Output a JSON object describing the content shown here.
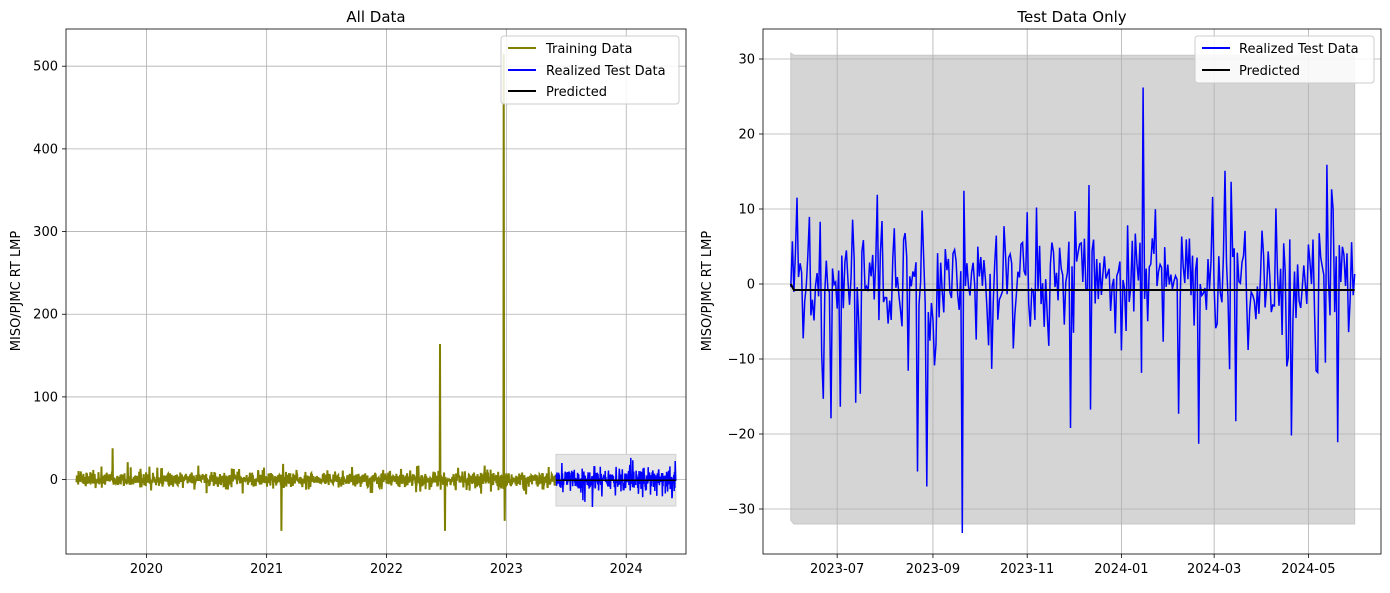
{
  "colors": {
    "training": "#808000",
    "test": "#0000ff",
    "predicted": "#000000",
    "band_left": "#e6e6e6",
    "band_right": "#d5d5d5"
  },
  "chart_data": [
    {
      "type": "line",
      "title": "All Data",
      "ylabel": "MISO/PJMC RT LMP",
      "xlim": [
        "2019-05-01",
        "2024-07-01"
      ],
      "ylim": [
        -90,
        545
      ],
      "x_ticks": [
        "2020",
        "2021",
        "2022",
        "2023",
        "2024"
      ],
      "y_ticks": [
        0,
        100,
        200,
        300,
        400,
        500
      ],
      "grid": true,
      "legend_position": "top-right",
      "legend": [
        "Training Data",
        "Realized Test Data",
        "Predicted"
      ],
      "series": [
        {
          "name": "Training Data",
          "approx_range": [
            "2019-06-01",
            "2023-05-31"
          ],
          "notable_points": [
            {
              "x": "2019-09-20",
              "y": 38
            },
            {
              "x": "2019-11-05",
              "y": 21
            },
            {
              "x": "2021-02-15",
              "y": -62
            },
            {
              "x": "2021-02-20",
              "y": 19
            },
            {
              "x": "2022-06-13",
              "y": 164
            },
            {
              "x": "2022-06-28",
              "y": -62
            },
            {
              "x": "2022-12-24",
              "y": 515
            },
            {
              "x": "2022-12-27",
              "y": -50
            }
          ]
        },
        {
          "name": "Realized Test Data",
          "approx_range": [
            "2023-06-01",
            "2024-05-31"
          ]
        },
        {
          "name": "Predicted",
          "approx_range": [
            "2023-06-01",
            "2024-05-31"
          ],
          "approx_value": -0.8,
          "interval": [
            -32,
            30.5
          ]
        }
      ]
    },
    {
      "type": "line",
      "title": "Test Data Only",
      "ylabel": "MISO/PJMC RT LMP",
      "xlim": [
        "2023-05-14",
        "2024-06-17"
      ],
      "ylim": [
        -36,
        34
      ],
      "x_ticks": [
        "2023-07",
        "2023-09",
        "2023-11",
        "2024-01",
        "2024-03",
        "2024-05"
      ],
      "y_ticks": [
        -30,
        -20,
        -10,
        0,
        10,
        20,
        30
      ],
      "grid": true,
      "legend_position": "top-right",
      "legend": [
        "Realized Test Data",
        "Predicted"
      ],
      "series": [
        {
          "name": "Realized Test Data",
          "approx_range": [
            "2023-06-01",
            "2024-05-31"
          ],
          "notable_points": [
            {
              "x": "2023-06-02",
              "y": 5.7
            },
            {
              "x": "2023-06-22",
              "y": -15.3
            },
            {
              "x": "2023-07-27",
              "y": 11.9
            },
            {
              "x": "2023-08-22",
              "y": -25.0
            },
            {
              "x": "2023-08-25",
              "y": 9.8
            },
            {
              "x": "2023-08-28",
              "y": -27.0
            },
            {
              "x": "2023-09-20",
              "y": -33.2
            },
            {
              "x": "2023-11-29",
              "y": -19.2
            },
            {
              "x": "2023-12-11",
              "y": 13.2
            },
            {
              "x": "2024-01-15",
              "y": 26.2
            },
            {
              "x": "2024-02-07",
              "y": -17.3
            },
            {
              "x": "2024-02-20",
              "y": -21.3
            },
            {
              "x": "2024-03-08",
              "y": 15.1
            },
            {
              "x": "2024-03-15",
              "y": -18.3
            },
            {
              "x": "2024-04-20",
              "y": -20.2
            },
            {
              "x": "2024-05-13",
              "y": 15.9
            },
            {
              "x": "2024-05-20",
              "y": -21.1
            }
          ]
        },
        {
          "name": "Predicted",
          "approx_range": [
            "2023-06-01",
            "2024-05-31"
          ],
          "approx_value": -0.8,
          "interval": [
            -32,
            30.5
          ]
        }
      ]
    }
  ]
}
